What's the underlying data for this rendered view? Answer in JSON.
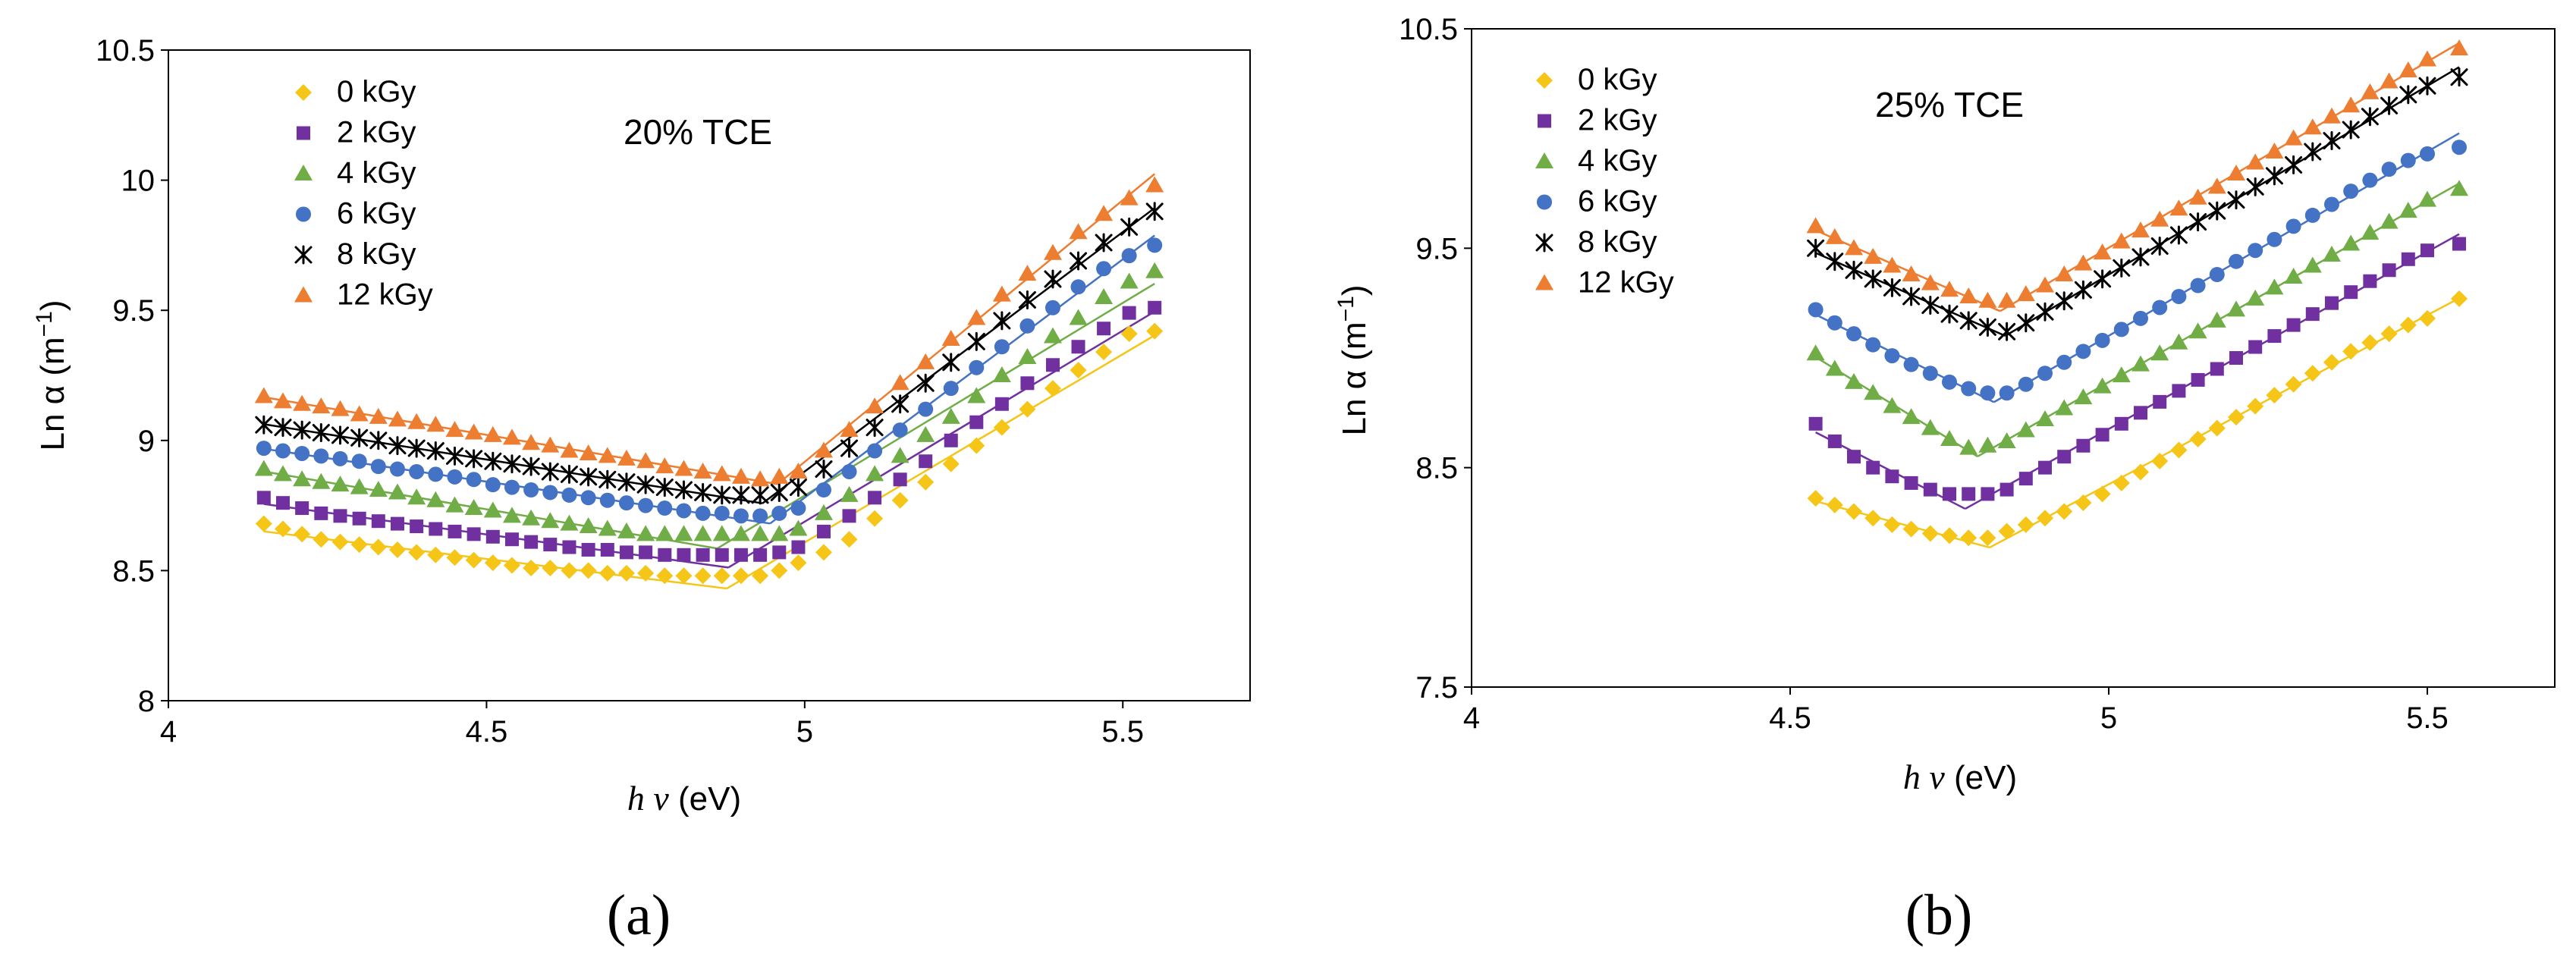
{
  "figure": {
    "panels": [
      {
        "panel_label": "(a)",
        "annotation": "20% TCE",
        "ylabel": {
          "main": "Ln α (m",
          "exponent": "−1",
          "close": ")"
        },
        "xlabel": {
          "symbol": "h v",
          "unit": " (eV)"
        },
        "xticks": [
          "4",
          "4.5",
          "5",
          "5.5"
        ],
        "yticks": [
          "8",
          "8.5",
          "9",
          "9.5",
          "10",
          "10.5"
        ]
      },
      {
        "panel_label": "(b)",
        "annotation": "25% TCE",
        "ylabel": {
          "main": "Ln α (m",
          "exponent": "−1",
          "close": ")"
        },
        "xlabel": {
          "symbol": "h v",
          "unit": " (eV)"
        },
        "xticks": [
          "4",
          "4.5",
          "5",
          "5.5"
        ],
        "yticks": [
          "7.5",
          "8.5",
          "9.5",
          "10.5"
        ]
      }
    ]
  },
  "chart_data": [
    {
      "type": "scatter",
      "title": "20% TCE",
      "xlabel": "h v (eV)",
      "ylabel": "Ln α (m−1)",
      "xlim": [
        4,
        5.7
      ],
      "ylim": [
        8,
        10.5
      ],
      "xticks": [
        4,
        4.5,
        5,
        5.5
      ],
      "yticks": [
        8,
        8.5,
        9,
        9.5,
        10,
        10.5
      ],
      "grid": false,
      "legend_position": "top-left",
      "x": [
        4.15,
        4.18,
        4.21,
        4.24,
        4.27,
        4.3,
        4.33,
        4.36,
        4.39,
        4.42,
        4.45,
        4.48,
        4.51,
        4.54,
        4.57,
        4.6,
        4.63,
        4.66,
        4.69,
        4.72,
        4.75,
        4.78,
        4.81,
        4.84,
        4.87,
        4.9,
        4.93,
        4.96,
        4.99,
        5.03,
        5.07,
        5.11,
        5.15,
        5.19,
        5.23,
        5.27,
        5.31,
        5.35,
        5.39,
        5.43,
        5.47,
        5.51,
        5.55
      ],
      "series": [
        {
          "name": "0 kGy",
          "color": "#F5C518",
          "marker": "diamond",
          "values": [
            8.68,
            8.66,
            8.64,
            8.62,
            8.61,
            8.6,
            8.59,
            8.58,
            8.57,
            8.56,
            8.55,
            8.54,
            8.53,
            8.52,
            8.51,
            8.51,
            8.5,
            8.5,
            8.49,
            8.49,
            8.49,
            8.48,
            8.48,
            8.48,
            8.48,
            8.48,
            8.48,
            8.5,
            8.53,
            8.57,
            8.62,
            8.7,
            8.77,
            8.84,
            8.91,
            8.98,
            9.05,
            9.12,
            9.2,
            9.27,
            9.34,
            9.41,
            9.42
          ]
        },
        {
          "name": "2 kGy",
          "color": "#7030A0",
          "marker": "square",
          "values": [
            8.78,
            8.76,
            8.74,
            8.72,
            8.71,
            8.7,
            8.69,
            8.68,
            8.67,
            8.66,
            8.65,
            8.64,
            8.63,
            8.62,
            8.61,
            8.6,
            8.59,
            8.58,
            8.58,
            8.57,
            8.57,
            8.56,
            8.56,
            8.56,
            8.56,
            8.56,
            8.56,
            8.57,
            8.59,
            8.65,
            8.71,
            8.78,
            8.85,
            8.92,
            9.0,
            9.07,
            9.14,
            9.22,
            9.29,
            9.36,
            9.43,
            9.49,
            9.51
          ]
        },
        {
          "name": "4 kGy",
          "color": "#70AD47",
          "marker": "triangle",
          "values": [
            8.89,
            8.87,
            8.85,
            8.84,
            8.83,
            8.82,
            8.81,
            8.8,
            8.78,
            8.77,
            8.75,
            8.74,
            8.73,
            8.71,
            8.7,
            8.69,
            8.68,
            8.67,
            8.66,
            8.65,
            8.64,
            8.64,
            8.64,
            8.64,
            8.64,
            8.64,
            8.64,
            8.64,
            8.66,
            8.72,
            8.79,
            8.87,
            8.94,
            9.02,
            9.09,
            9.17,
            9.25,
            9.32,
            9.4,
            9.47,
            9.55,
            9.61,
            9.65
          ]
        },
        {
          "name": "6 kGy",
          "color": "#4472C4",
          "marker": "circle",
          "values": [
            8.97,
            8.96,
            8.95,
            8.94,
            8.93,
            8.92,
            8.9,
            8.89,
            8.88,
            8.87,
            8.86,
            8.85,
            8.83,
            8.82,
            8.81,
            8.8,
            8.79,
            8.78,
            8.77,
            8.76,
            8.75,
            8.74,
            8.73,
            8.72,
            8.72,
            8.71,
            8.71,
            8.72,
            8.74,
            8.81,
            8.88,
            8.96,
            9.04,
            9.12,
            9.2,
            9.28,
            9.36,
            9.44,
            9.51,
            9.59,
            9.66,
            9.71,
            9.75
          ]
        },
        {
          "name": "8 kGy",
          "color": "#000000",
          "marker": "star",
          "values": [
            9.06,
            9.05,
            9.04,
            9.03,
            9.02,
            9.01,
            9.0,
            8.98,
            8.97,
            8.96,
            8.94,
            8.93,
            8.92,
            8.91,
            8.9,
            8.88,
            8.87,
            8.86,
            8.85,
            8.84,
            8.83,
            8.82,
            8.81,
            8.8,
            8.79,
            8.79,
            8.79,
            8.8,
            8.82,
            8.89,
            8.97,
            9.05,
            9.14,
            9.22,
            9.3,
            9.38,
            9.46,
            9.54,
            9.62,
            9.69,
            9.76,
            9.82,
            9.88
          ]
        },
        {
          "name": "12 kGy",
          "color": "#ED7D31",
          "marker": "triangle",
          "values": [
            9.17,
            9.15,
            9.14,
            9.13,
            9.12,
            9.1,
            9.09,
            9.08,
            9.07,
            9.06,
            9.04,
            9.03,
            9.02,
            9.01,
            8.99,
            8.98,
            8.96,
            8.95,
            8.94,
            8.93,
            8.92,
            8.9,
            8.89,
            8.88,
            8.87,
            8.86,
            8.85,
            8.86,
            8.88,
            8.96,
            9.04,
            9.13,
            9.22,
            9.3,
            9.39,
            9.47,
            9.56,
            9.64,
            9.72,
            9.8,
            9.87,
            9.93,
            9.98
          ]
        }
      ]
    },
    {
      "type": "scatter",
      "title": "25% TCE",
      "xlabel": "h v (eV)",
      "ylabel": "Ln α (m−1)",
      "xlim": [
        4,
        5.7
      ],
      "ylim": [
        7.5,
        10.5
      ],
      "xticks": [
        4,
        4.5,
        5,
        5.5
      ],
      "yticks": [
        7.5,
        8.5,
        9.5,
        10.5
      ],
      "grid": false,
      "legend_position": "top-left",
      "x": [
        4.54,
        4.57,
        4.6,
        4.63,
        4.66,
        4.69,
        4.72,
        4.75,
        4.78,
        4.81,
        4.84,
        4.87,
        4.9,
        4.93,
        4.96,
        4.99,
        5.02,
        5.05,
        5.08,
        5.11,
        5.14,
        5.17,
        5.2,
        5.23,
        5.26,
        5.29,
        5.32,
        5.35,
        5.38,
        5.41,
        5.44,
        5.47,
        5.5,
        5.55
      ],
      "series": [
        {
          "name": "0 kGy",
          "color": "#F5C518",
          "marker": "diamond",
          "values": [
            8.36,
            8.33,
            8.3,
            8.27,
            8.24,
            8.22,
            8.2,
            8.19,
            8.18,
            8.18,
            8.21,
            8.24,
            8.27,
            8.3,
            8.34,
            8.38,
            8.43,
            8.48,
            8.53,
            8.58,
            8.63,
            8.68,
            8.73,
            8.78,
            8.83,
            8.88,
            8.93,
            8.98,
            9.03,
            9.07,
            9.11,
            9.15,
            9.18,
            9.27
          ]
        },
        {
          "name": "2 kGy",
          "color": "#7030A0",
          "marker": "square",
          "values": [
            8.7,
            8.62,
            8.55,
            8.5,
            8.46,
            8.43,
            8.4,
            8.38,
            8.38,
            8.38,
            8.4,
            8.45,
            8.5,
            8.55,
            8.6,
            8.65,
            8.7,
            8.75,
            8.8,
            8.85,
            8.9,
            8.95,
            9.0,
            9.05,
            9.1,
            9.15,
            9.2,
            9.25,
            9.3,
            9.35,
            9.4,
            9.45,
            9.49,
            9.52
          ]
        },
        {
          "name": "4 kGy",
          "color": "#70AD47",
          "marker": "triangle",
          "values": [
            9.02,
            8.95,
            8.89,
            8.84,
            8.78,
            8.73,
            8.68,
            8.63,
            8.59,
            8.6,
            8.62,
            8.67,
            8.72,
            8.77,
            8.82,
            8.87,
            8.92,
            8.97,
            9.02,
            9.07,
            9.12,
            9.17,
            9.22,
            9.27,
            9.32,
            9.37,
            9.42,
            9.47,
            9.52,
            9.57,
            9.62,
            9.67,
            9.72,
            9.77
          ]
        },
        {
          "name": "6 kGy",
          "color": "#4472C4",
          "marker": "circle",
          "values": [
            9.22,
            9.16,
            9.11,
            9.06,
            9.01,
            8.97,
            8.93,
            8.89,
            8.86,
            8.84,
            8.84,
            8.88,
            8.93,
            8.98,
            9.03,
            9.08,
            9.13,
            9.18,
            9.23,
            9.28,
            9.33,
            9.38,
            9.44,
            9.49,
            9.54,
            9.6,
            9.65,
            9.7,
            9.76,
            9.81,
            9.86,
            9.9,
            9.93,
            9.96
          ]
        },
        {
          "name": "8 kGy",
          "color": "#000000",
          "marker": "star",
          "values": [
            9.5,
            9.44,
            9.4,
            9.36,
            9.32,
            9.28,
            9.24,
            9.2,
            9.17,
            9.14,
            9.12,
            9.16,
            9.21,
            9.26,
            9.31,
            9.36,
            9.41,
            9.46,
            9.51,
            9.56,
            9.62,
            9.67,
            9.72,
            9.78,
            9.83,
            9.88,
            9.94,
            9.99,
            10.04,
            10.1,
            10.15,
            10.2,
            10.24,
            10.28
          ]
        },
        {
          "name": "12 kGy",
          "color": "#ED7D31",
          "marker": "triangle",
          "values": [
            9.6,
            9.55,
            9.5,
            9.46,
            9.42,
            9.38,
            9.34,
            9.31,
            9.28,
            9.26,
            9.26,
            9.29,
            9.33,
            9.38,
            9.43,
            9.48,
            9.53,
            9.58,
            9.63,
            9.68,
            9.73,
            9.78,
            9.84,
            9.89,
            9.94,
            10.0,
            10.05,
            10.1,
            10.15,
            10.21,
            10.26,
            10.31,
            10.36,
            10.41
          ]
        }
      ]
    }
  ]
}
